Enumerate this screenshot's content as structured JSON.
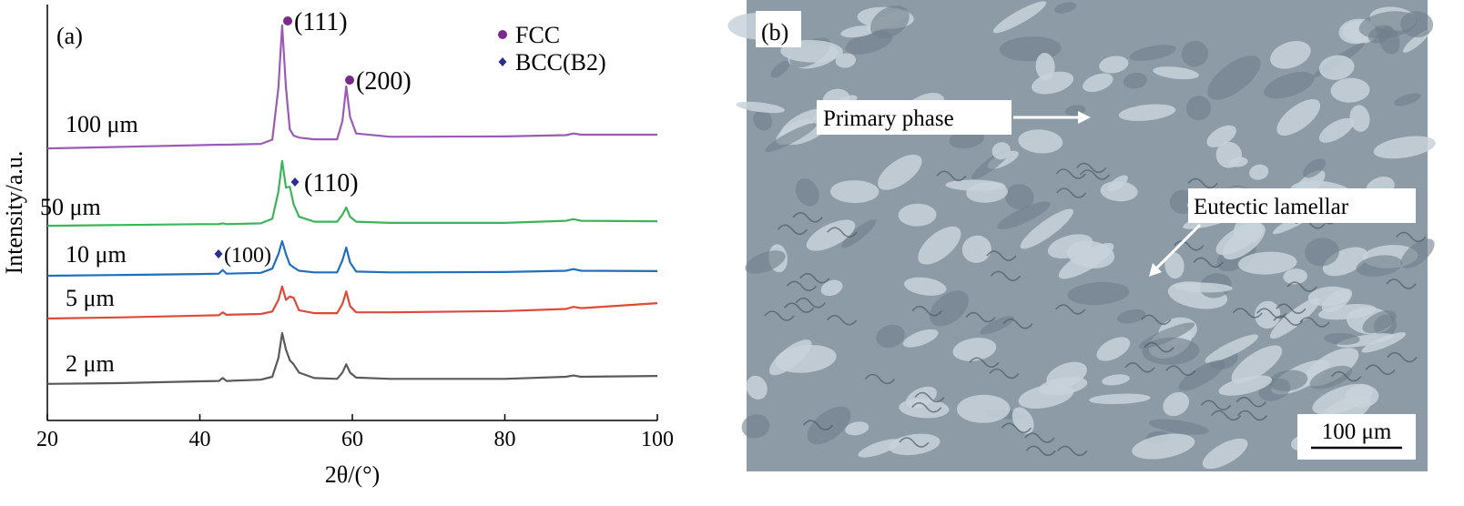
{
  "chart_data": {
    "type": "line",
    "panel_label": "(a)",
    "x_label": "2θ/(°)",
    "y_label": "Intensity/a.u.",
    "x": [
      20,
      30,
      40,
      42.5,
      43,
      43.5,
      48,
      49.5,
      50.3,
      50.8,
      51.3,
      51.8,
      52.3,
      53,
      55,
      58,
      58.7,
      59.2,
      59.7,
      60.5,
      65,
      80,
      88,
      89,
      90,
      100
    ],
    "xlim": [
      20,
      100
    ],
    "xticks": [
      20,
      40,
      60,
      80,
      100
    ],
    "ylim": [
      0,
      100
    ],
    "series": [
      {
        "name": "2 μm",
        "color": "#5a5a5a",
        "values": [
          8.8,
          9.0,
          9.4,
          9.5,
          10.2,
          9.5,
          9.8,
          10.5,
          15,
          21,
          17,
          14.5,
          13.5,
          11.5,
          10.2,
          10.0,
          11.5,
          13.5,
          11.5,
          10.3,
          10.0,
          10.0,
          10.5,
          10.8,
          10.5,
          10.7
        ]
      },
      {
        "name": "5 μm",
        "color": "#e0483a",
        "values": [
          24.5,
          24.8,
          25.2,
          25.3,
          26,
          25.4,
          25.6,
          26.2,
          29,
          32.2,
          29,
          29.8,
          29.5,
          26.5,
          25.8,
          25.8,
          28,
          31,
          27.5,
          26,
          26,
          26.3,
          26.8,
          27.3,
          27,
          28.2
        ]
      },
      {
        "name": "10 μm",
        "color": "#1f6fbd",
        "values": [
          34.8,
          35,
          35.2,
          35.3,
          36.2,
          35.3,
          35.5,
          36.5,
          40,
          43.1,
          40,
          37.5,
          36.8,
          36,
          35.6,
          35.6,
          38.5,
          41.6,
          38,
          35.8,
          35.6,
          35.7,
          36,
          36.4,
          36,
          35.9
        ]
      },
      {
        "name": "50 μm",
        "color": "#3db35b",
        "values": [
          46.8,
          47,
          47.2,
          47.2,
          47.4,
          47.2,
          47.4,
          48.5,
          55,
          62.4,
          56,
          56.2,
          52,
          49,
          47.8,
          47.8,
          49.5,
          51.2,
          49,
          47.8,
          47.5,
          47.5,
          48,
          48.4,
          48,
          47.9
        ]
      },
      {
        "name": "100 μm",
        "color": "#9a5bb5",
        "values": [
          65.4,
          65.8,
          66.2,
          66.3,
          66.3,
          66.3,
          66.5,
          67.5,
          80,
          95,
          80,
          70,
          68.5,
          68,
          67.6,
          67.6,
          72,
          80.3,
          73,
          69,
          68.2,
          68.3,
          68.6,
          69,
          68.7,
          68.7
        ]
      }
    ],
    "phase_legend": [
      {
        "name": "FCC",
        "color": "#7b2a8c"
      },
      {
        "name": "BCC(B2)",
        "color": "#2b2f8f"
      }
    ],
    "peak_labels": [
      "(111)",
      "(200)",
      "(110)",
      "(100)"
    ]
  },
  "micrograph": {
    "panel_label": "(b)",
    "annotations": [
      "Primary phase",
      "Eutectic lamellar"
    ],
    "scale_bar": "100 μm"
  }
}
